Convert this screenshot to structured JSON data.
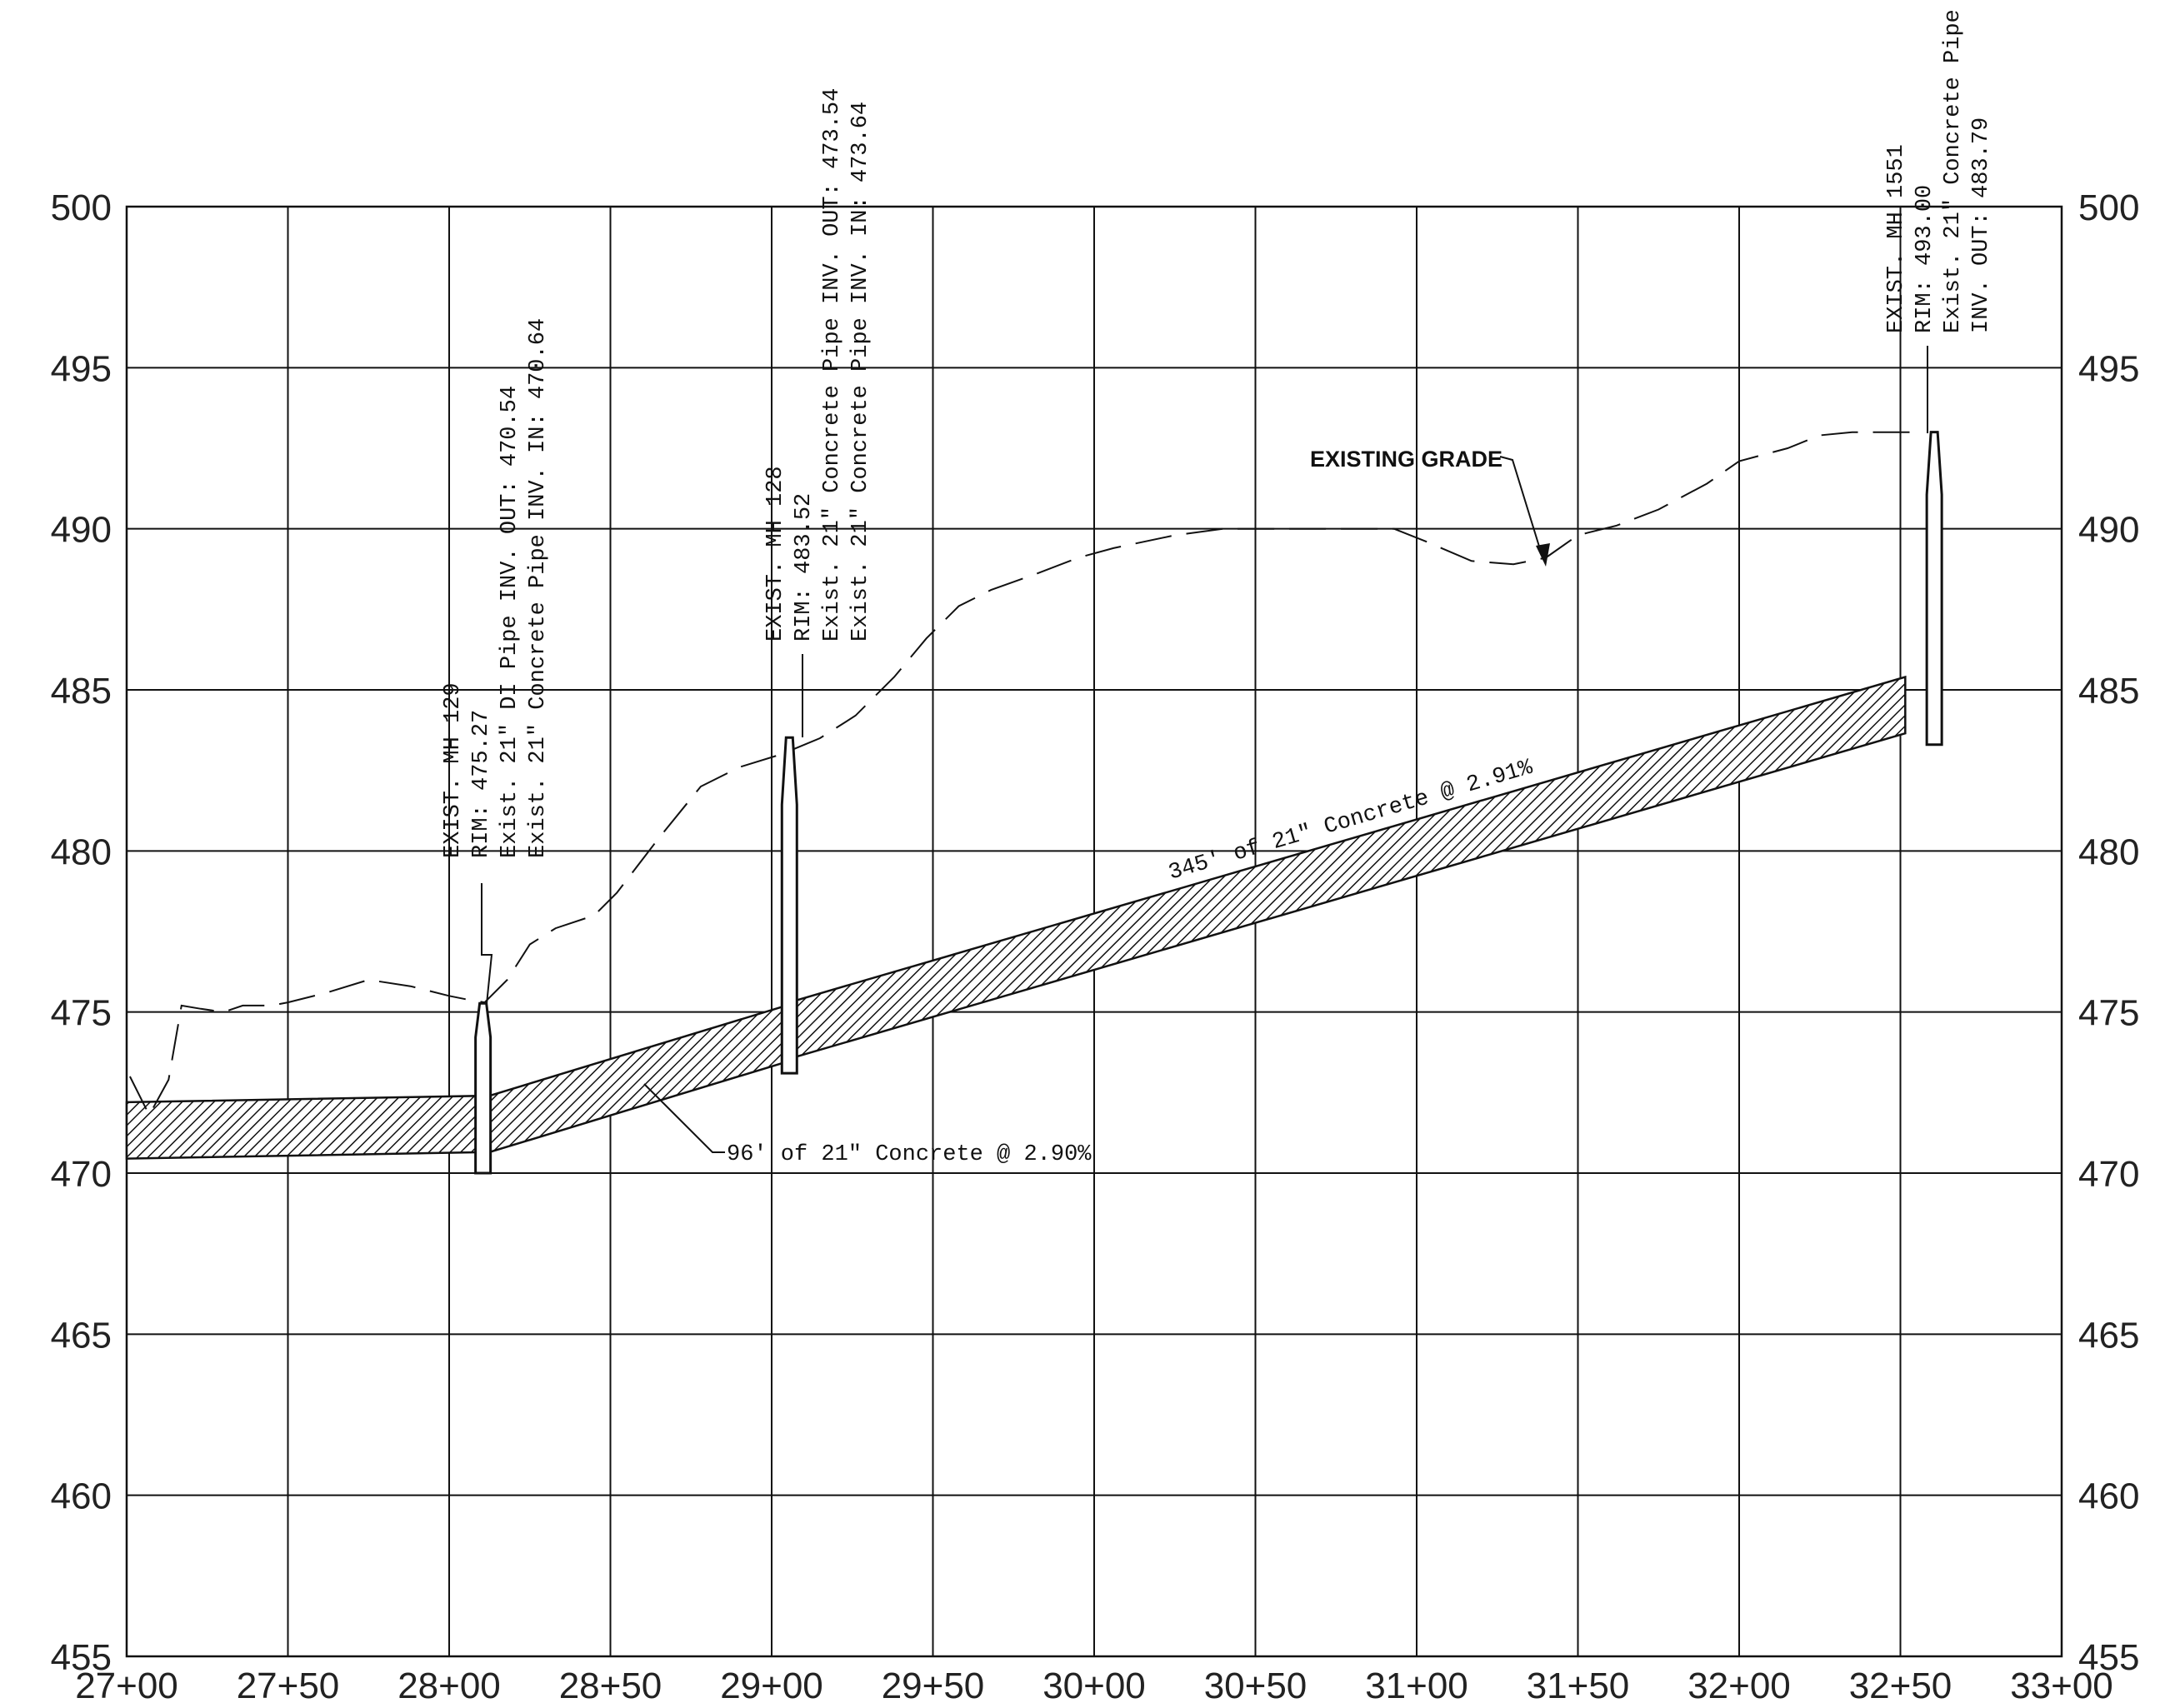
{
  "profile": {
    "station_range": [
      2700,
      3300
    ],
    "elevation_range": [
      455,
      500
    ],
    "x_ticks": [
      {
        "station": 2700,
        "label": "27+00"
      },
      {
        "station": 2750,
        "label": "27+50"
      },
      {
        "station": 2800,
        "label": "28+00"
      },
      {
        "station": 2850,
        "label": "28+50"
      },
      {
        "station": 2900,
        "label": "29+00"
      },
      {
        "station": 2950,
        "label": "29+50"
      },
      {
        "station": 3000,
        "label": "30+00"
      },
      {
        "station": 3050,
        "label": "30+50"
      },
      {
        "station": 3100,
        "label": "31+00"
      },
      {
        "station": 3150,
        "label": "31+50"
      },
      {
        "station": 3200,
        "label": "32+00"
      },
      {
        "station": 3250,
        "label": "32+50"
      },
      {
        "station": 3300,
        "label": "33+00"
      }
    ],
    "y_ticks": [
      {
        "elev": 500,
        "label": "500"
      },
      {
        "elev": 495,
        "label": "495"
      },
      {
        "elev": 490,
        "label": "490"
      },
      {
        "elev": 485,
        "label": "485"
      },
      {
        "elev": 480,
        "label": "480"
      },
      {
        "elev": 475,
        "label": "475"
      },
      {
        "elev": 470,
        "label": "470"
      },
      {
        "elev": 465,
        "label": "465"
      },
      {
        "elev": 460,
        "label": "460"
      },
      {
        "elev": 455,
        "label": "455"
      }
    ],
    "existing_grade_label": "EXISTING GRADE",
    "existing_grade": [
      [
        2701,
        473.0
      ],
      [
        2707,
        471.8
      ],
      [
        2713,
        472.9
      ],
      [
        2717,
        475.2
      ],
      [
        2723,
        475.1
      ],
      [
        2730,
        475.0
      ],
      [
        2736,
        475.2
      ],
      [
        2745,
        475.2
      ],
      [
        2750,
        475.3
      ],
      [
        2762,
        475.6
      ],
      [
        2775,
        476.0
      ],
      [
        2788,
        475.8
      ],
      [
        2800,
        475.5
      ],
      [
        2805,
        475.4
      ],
      [
        2811,
        475.3
      ],
      [
        2818,
        476.0
      ],
      [
        2825,
        477.1
      ],
      [
        2833,
        477.6
      ],
      [
        2845,
        478.0
      ],
      [
        2852,
        478.7
      ],
      [
        2865,
        480.4
      ],
      [
        2878,
        482.0
      ],
      [
        2890,
        482.6
      ],
      [
        2903,
        483.0
      ],
      [
        2915,
        483.5
      ],
      [
        2926,
        484.2
      ],
      [
        2938,
        485.4
      ],
      [
        2948,
        486.6
      ],
      [
        2958,
        487.6
      ],
      [
        2968,
        488.1
      ],
      [
        2982,
        488.6
      ],
      [
        2995,
        489.1
      ],
      [
        3006,
        489.4
      ],
      [
        3025,
        489.8
      ],
      [
        3040,
        490.0
      ],
      [
        3055,
        490.0
      ],
      [
        3075,
        490.0
      ],
      [
        3093,
        490.0
      ],
      [
        3103,
        489.6
      ],
      [
        3117,
        489.0
      ],
      [
        3130,
        488.9
      ],
      [
        3140,
        489.1
      ],
      [
        3150,
        489.8
      ],
      [
        3162,
        490.1
      ],
      [
        3175,
        490.6
      ],
      [
        3190,
        491.4
      ],
      [
        3200,
        492.1
      ],
      [
        3215,
        492.5
      ],
      [
        3225,
        492.9
      ],
      [
        3235,
        493.0
      ],
      [
        3255,
        493.0
      ]
    ],
    "pipes": [
      {
        "label": "",
        "from": [
          2700,
          472.2
        ],
        "to": [
          2810.5,
          472.4
        ],
        "thickness": 1.75
      },
      {
        "label": "96' of 21\" Concrete @ 2.90%",
        "from": [
          2812.5,
          472.4
        ],
        "to": [
          2905.5,
          475.23
        ],
        "thickness": 1.75
      },
      {
        "label": "345' of 21\" Concrete @ 2.91%",
        "from": [
          2906.5,
          475.33
        ],
        "to": [
          3251.5,
          485.4
        ],
        "thickness": 1.75
      }
    ],
    "manholes": [
      {
        "id": "mh129",
        "station": 2810.5,
        "rim": 475.27,
        "bottom": 470.0,
        "notes": [
          "EXIST. MH 129",
          "RIM: 475.27",
          "Exist. 21\" DI Pipe INV. OUT: 470.54",
          "Exist. 21\" Concrete Pipe INV. IN: 470.64"
        ]
      },
      {
        "id": "mh128",
        "station": 2905.5,
        "rim": 483.52,
        "bottom": 473.1,
        "notes": [
          "EXIST. MH 128",
          "RIM: 483.52",
          "Exist. 21\" Concrete Pipe INV. OUT: 473.54",
          "Exist. 21\" Concrete Pipe INV. IN: 473.64"
        ]
      },
      {
        "id": "mh1551",
        "station": 3260.5,
        "rim": 493.0,
        "bottom": 483.3,
        "notes": [
          "EXIST. MH 1551",
          "RIM: 493.00",
          "Exist. 21\" Concrete Pipe",
          "INV. OUT: 483.79"
        ]
      }
    ]
  }
}
